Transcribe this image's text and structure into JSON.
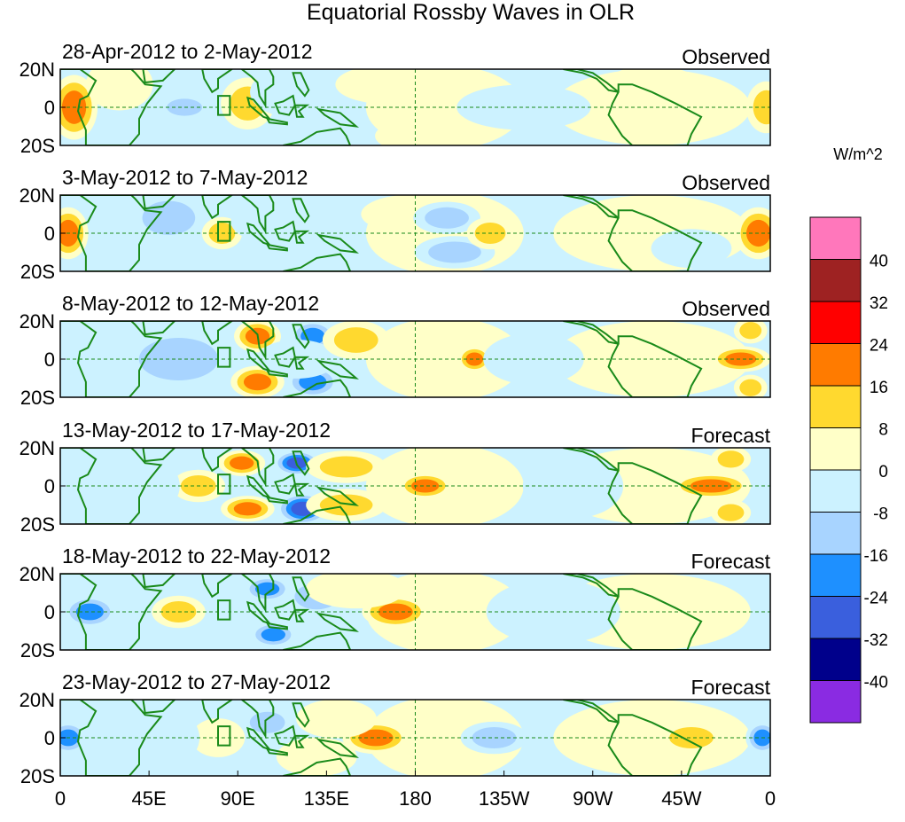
{
  "chart_data": {
    "type": "heatmap",
    "title": "Equatorial Rossby Waves in OLR",
    "units_label": "W/m^2",
    "x_ticks": [
      "0",
      "45E",
      "90E",
      "135E",
      "180",
      "135W",
      "90W",
      "45W",
      "0"
    ],
    "x_tick_values_deg_east": [
      0,
      45,
      90,
      135,
      180,
      225,
      270,
      315,
      360
    ],
    "y_ticks": [
      "20N",
      "0",
      "20S"
    ],
    "y_tick_values_deg": [
      20,
      0,
      -20
    ],
    "xlim_deg_east": [
      0,
      360
    ],
    "ylim_deg": [
      -20,
      20
    ],
    "colorbar": {
      "labels": [
        "40",
        "32",
        "24",
        "16",
        "8",
        "0",
        "-8",
        "-16",
        "-24",
        "-32",
        "-40"
      ],
      "colors": [
        "#ff77bb",
        "#9e2222",
        "#ff0000",
        "#ff7b00",
        "#ffd92f",
        "#ffffc8",
        "#ccf2ff",
        "#a8d4ff",
        "#1e90ff",
        "#3a5fdd",
        "#00008b",
        "#8a2be2"
      ]
    },
    "panels": [
      {
        "period": "28-Apr-2012 to 2-May-2012",
        "status": "Observed",
        "anomalies": [
          {
            "lon": 7,
            "lat": 0,
            "value": 18,
            "sx": 7,
            "sy": 10
          },
          {
            "lon": 30,
            "lat": 12,
            "value": 6,
            "sx": 10,
            "sy": 8
          },
          {
            "lon": 63,
            "lat": 0,
            "value": -16,
            "sx": 8,
            "sy": 4
          },
          {
            "lon": 95,
            "lat": 2,
            "value": 14,
            "sx": 8,
            "sy": 8
          },
          {
            "lon": 120,
            "lat": 8,
            "value": -8,
            "sx": 14,
            "sy": 8
          },
          {
            "lon": 180,
            "lat": -15,
            "value": 7,
            "sx": 12,
            "sy": 5
          },
          {
            "lon": 165,
            "lat": 12,
            "value": 5,
            "sx": 15,
            "sy": 6
          },
          {
            "lon": 235,
            "lat": 0,
            "value": -6,
            "sx": 20,
            "sy": 7
          },
          {
            "lon": 300,
            "lat": 10,
            "value": 5,
            "sx": 15,
            "sy": 7
          },
          {
            "lon": 358,
            "lat": 0,
            "value": 12,
            "sx": 6,
            "sy": 8
          }
        ]
      },
      {
        "period": "3-May-2012 to 7-May-2012",
        "status": "Observed",
        "anomalies": [
          {
            "lon": 4,
            "lat": 0,
            "value": 18,
            "sx": 6,
            "sy": 8
          },
          {
            "lon": 55,
            "lat": 8,
            "value": -9,
            "sx": 12,
            "sy": 8
          },
          {
            "lon": 82,
            "lat": 0,
            "value": 9,
            "sx": 6,
            "sy": 5
          },
          {
            "lon": 112,
            "lat": 6,
            "value": -6,
            "sx": 15,
            "sy": 7
          },
          {
            "lon": 178,
            "lat": 10,
            "value": 6,
            "sx": 15,
            "sy": 6
          },
          {
            "lon": 196,
            "lat": 8,
            "value": -12,
            "sx": 10,
            "sy": 5
          },
          {
            "lon": 200,
            "lat": -10,
            "value": -14,
            "sx": 12,
            "sy": 5
          },
          {
            "lon": 218,
            "lat": 0,
            "value": 12,
            "sx": 7,
            "sy": 5
          },
          {
            "lon": 268,
            "lat": 2,
            "value": 6,
            "sx": 10,
            "sy": 6
          },
          {
            "lon": 320,
            "lat": -8,
            "value": -6,
            "sx": 12,
            "sy": 6
          },
          {
            "lon": 354,
            "lat": 0,
            "value": 18,
            "sx": 7,
            "sy": 8
          }
        ]
      },
      {
        "period": "8-May-2012 to 12-May-2012",
        "status": "Observed",
        "anomalies": [
          {
            "lon": 100,
            "lat": 12,
            "value": 20,
            "sx": 7,
            "sy": 5
          },
          {
            "lon": 100,
            "lat": -12,
            "value": 20,
            "sx": 8,
            "sy": 5
          },
          {
            "lon": 128,
            "lat": 12,
            "value": -22,
            "sx": 7,
            "sy": 5
          },
          {
            "lon": 128,
            "lat": -12,
            "value": -20,
            "sx": 8,
            "sy": 5
          },
          {
            "lon": 120,
            "lat": 0,
            "value": -8,
            "sx": 12,
            "sy": 6
          },
          {
            "lon": 150,
            "lat": 10,
            "value": 9,
            "sx": 10,
            "sy": 6
          },
          {
            "lon": 210,
            "lat": 0,
            "value": 20,
            "sx": 5,
            "sy": 4
          },
          {
            "lon": 60,
            "lat": 0,
            "value": -10,
            "sx": 18,
            "sy": 10
          },
          {
            "lon": 240,
            "lat": 0,
            "value": -5,
            "sx": 15,
            "sy": 8
          },
          {
            "lon": 345,
            "lat": 0,
            "value": 22,
            "sx": 9,
            "sy": 4
          },
          {
            "lon": 350,
            "lat": -15,
            "value": 16,
            "sx": 5,
            "sy": 4
          },
          {
            "lon": 350,
            "lat": 15,
            "value": 12,
            "sx": 5,
            "sy": 4
          }
        ]
      },
      {
        "period": "13-May-2012 to 17-May-2012",
        "status": "Forecast",
        "anomalies": [
          {
            "lon": 92,
            "lat": 12,
            "value": 22,
            "sx": 7,
            "sy": 4
          },
          {
            "lon": 95,
            "lat": -12,
            "value": 22,
            "sx": 8,
            "sy": 4
          },
          {
            "lon": 120,
            "lat": 12,
            "value": -26,
            "sx": 7,
            "sy": 4
          },
          {
            "lon": 123,
            "lat": -12,
            "value": -28,
            "sx": 8,
            "sy": 5
          },
          {
            "lon": 70,
            "lat": 0,
            "value": 9,
            "sx": 8,
            "sy": 5
          },
          {
            "lon": 145,
            "lat": 10,
            "value": 10,
            "sx": 12,
            "sy": 5
          },
          {
            "lon": 145,
            "lat": -10,
            "value": 10,
            "sx": 12,
            "sy": 5
          },
          {
            "lon": 185,
            "lat": 0,
            "value": 18,
            "sx": 8,
            "sy": 4
          },
          {
            "lon": 30,
            "lat": 0,
            "value": -8,
            "sx": 18,
            "sy": 12
          },
          {
            "lon": 330,
            "lat": 0,
            "value": 20,
            "sx": 12,
            "sy": 4
          },
          {
            "lon": 340,
            "lat": -14,
            "value": 14,
            "sx": 6,
            "sy": 4
          },
          {
            "lon": 340,
            "lat": 14,
            "value": 10,
            "sx": 6,
            "sy": 4
          },
          {
            "lon": 260,
            "lat": 0,
            "value": -6,
            "sx": 15,
            "sy": 10
          }
        ]
      },
      {
        "period": "18-May-2012 to 22-May-2012",
        "status": "Forecast",
        "anomalies": [
          {
            "lon": 15,
            "lat": 0,
            "value": -22,
            "sx": 8,
            "sy": 5
          },
          {
            "lon": 60,
            "lat": 0,
            "value": 9,
            "sx": 8,
            "sy": 5
          },
          {
            "lon": 105,
            "lat": 12,
            "value": -24,
            "sx": 7,
            "sy": 4
          },
          {
            "lon": 108,
            "lat": -12,
            "value": -24,
            "sx": 7,
            "sy": 4
          },
          {
            "lon": 130,
            "lat": 8,
            "value": -12,
            "sx": 10,
            "sy": 6
          },
          {
            "lon": 170,
            "lat": 0,
            "value": 20,
            "sx": 10,
            "sy": 5
          },
          {
            "lon": 150,
            "lat": 12,
            "value": 6,
            "sx": 15,
            "sy": 6
          },
          {
            "lon": 320,
            "lat": 0,
            "value": 8,
            "sx": 12,
            "sy": 5
          },
          {
            "lon": 250,
            "lat": 0,
            "value": -6,
            "sx": 20,
            "sy": 10
          }
        ]
      },
      {
        "period": "23-May-2012 to 27-May-2012",
        "status": "Forecast",
        "anomalies": [
          {
            "lon": 4,
            "lat": 0,
            "value": -20,
            "sx": 6,
            "sy": 5
          },
          {
            "lon": 160,
            "lat": 0,
            "value": 20,
            "sx": 10,
            "sy": 5
          },
          {
            "lon": 140,
            "lat": 10,
            "value": 8,
            "sx": 12,
            "sy": 6
          },
          {
            "lon": 130,
            "lat": -10,
            "value": 8,
            "sx": 12,
            "sy": 6
          },
          {
            "lon": 80,
            "lat": 0,
            "value": 8,
            "sx": 8,
            "sy": 6
          },
          {
            "lon": 105,
            "lat": 8,
            "value": -12,
            "sx": 8,
            "sy": 5
          },
          {
            "lon": 220,
            "lat": 0,
            "value": -10,
            "sx": 10,
            "sy": 5
          },
          {
            "lon": 320,
            "lat": 0,
            "value": 12,
            "sx": 10,
            "sy": 5
          },
          {
            "lon": 356,
            "lat": 0,
            "value": -18,
            "sx": 5,
            "sy": 5
          },
          {
            "lon": 40,
            "lat": 0,
            "value": -6,
            "sx": 18,
            "sy": 12
          }
        ]
      }
    ]
  }
}
